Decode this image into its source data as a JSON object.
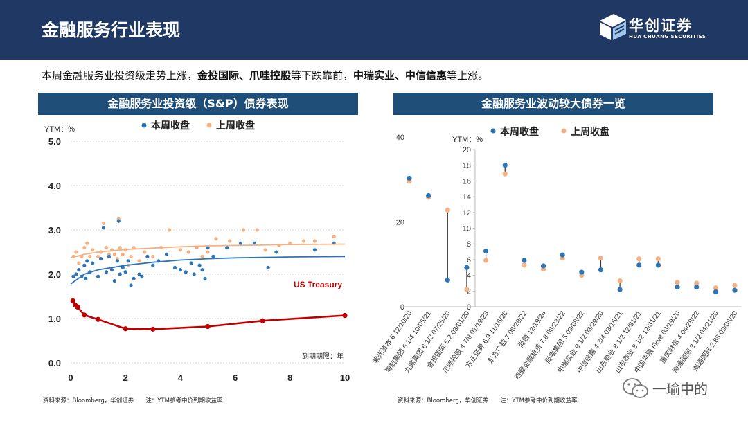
{
  "header": {
    "title": "金融服务行业表现",
    "logo_cn": "华创证券",
    "logo_en": "HUA CHUANG SECURITIES"
  },
  "summary": {
    "p1": "本周金融服务业投资级走势上涨，",
    "b1": "金投国际、爪哇控股",
    "p2": "等下跌靠前，",
    "b2": "中瑞实业、中信信惠",
    "p3": "等上涨。"
  },
  "panel_left": {
    "banner": "金融服务业投资级（S&P）债券表现",
    "ylabel": "YTM：%",
    "legend_this": "本周收盘",
    "legend_last": "上周收盘",
    "treasury_label": "US Treasury",
    "xlabel": "到期期限：年",
    "source": "资料来源：Bloomberg，华创证券　　注：YTM参考中价到期收益率"
  },
  "panel_right": {
    "banner": "金融服务业波动较大债券一览",
    "ylabel": "YTM：%",
    "legend_this": "本周收盘",
    "legend_last": "上周收盘",
    "source": "资料来源：Bloomberg，华创证券　　注：YTM参考中价到期收益率"
  },
  "watermark": "一瑜中的",
  "colors": {
    "this_week": "#2e75b6",
    "last_week": "#f4b183",
    "treasury": "#c00000",
    "navy": "#1f3864"
  },
  "chart_data": [
    {
      "type": "scatter",
      "title": "金融服务业投资级（S&P）债券表现",
      "xlabel": "到期期限：年",
      "ylabel": "YTM：%",
      "xlim": [
        0,
        10
      ],
      "ylim": [
        0,
        5
      ],
      "xticks": [
        "0",
        "2",
        "4",
        "6",
        "8",
        "10"
      ],
      "yticks": [
        "0.0",
        "1.0",
        "2.0",
        "3.0",
        "4.0",
        "5.0"
      ],
      "series": [
        {
          "name": "本周收盘",
          "points": [
            [
              0.1,
              1.95
            ],
            [
              0.2,
              2.0
            ],
            [
              0.3,
              2.1
            ],
            [
              0.4,
              1.95
            ],
            [
              0.5,
              2.2
            ],
            [
              0.55,
              1.9
            ],
            [
              0.6,
              2.3
            ],
            [
              0.7,
              2.05
            ],
            [
              0.8,
              2.25
            ],
            [
              1.0,
              1.95
            ],
            [
              1.1,
              2.35
            ],
            [
              1.2,
              3.05
            ],
            [
              1.3,
              2.05
            ],
            [
              1.4,
              2.4
            ],
            [
              1.5,
              2.1
            ],
            [
              1.6,
              1.85
            ],
            [
              1.7,
              2.3
            ],
            [
              1.75,
              3.2
            ],
            [
              1.8,
              2.0
            ],
            [
              1.9,
              2.15
            ],
            [
              2.0,
              2.05
            ],
            [
              2.1,
              2.3
            ],
            [
              2.2,
              1.75
            ],
            [
              2.3,
              1.9
            ],
            [
              2.5,
              2.0
            ],
            [
              2.6,
              1.95
            ],
            [
              2.8,
              2.4
            ],
            [
              3.0,
              2.2
            ],
            [
              3.2,
              2.3
            ],
            [
              3.5,
              2.45
            ],
            [
              3.8,
              2.15
            ],
            [
              4.0,
              2.1
            ],
            [
              4.2,
              2.05
            ],
            [
              4.4,
              2.25
            ],
            [
              4.5,
              2.0
            ],
            [
              4.7,
              2.2
            ],
            [
              4.8,
              2.1
            ],
            [
              4.9,
              1.9
            ],
            [
              5.0,
              2.6
            ],
            [
              5.2,
              2.4
            ],
            [
              5.7,
              2.6
            ],
            [
              6.2,
              2.7
            ],
            [
              6.7,
              2.7
            ],
            [
              7.2,
              2.15
            ],
            [
              7.5,
              2.5
            ],
            [
              8.9,
              2.55
            ],
            [
              9.6,
              2.7
            ]
          ]
        },
        {
          "name": "上周收盘",
          "points": [
            [
              0.1,
              2.4
            ],
            [
              0.2,
              2.5
            ],
            [
              0.3,
              2.25
            ],
            [
              0.4,
              2.4
            ],
            [
              0.5,
              2.6
            ],
            [
              0.6,
              2.7
            ],
            [
              0.7,
              2.4
            ],
            [
              0.8,
              2.55
            ],
            [
              1.0,
              2.4
            ],
            [
              1.1,
              2.5
            ],
            [
              1.2,
              3.15
            ],
            [
              1.3,
              2.6
            ],
            [
              1.4,
              2.45
            ],
            [
              1.5,
              2.55
            ],
            [
              1.6,
              2.45
            ],
            [
              1.7,
              2.35
            ],
            [
              1.75,
              3.25
            ],
            [
              1.8,
              2.6
            ],
            [
              1.9,
              2.45
            ],
            [
              2.0,
              2.55
            ],
            [
              2.1,
              2.2
            ],
            [
              2.2,
              2.4
            ],
            [
              2.3,
              2.6
            ],
            [
              2.5,
              2.3
            ],
            [
              2.7,
              2.5
            ],
            [
              3.0,
              2.4
            ],
            [
              3.3,
              2.6
            ],
            [
              3.6,
              3.0
            ],
            [
              4.0,
              2.55
            ],
            [
              4.3,
              2.5
            ],
            [
              4.6,
              2.6
            ],
            [
              4.8,
              2.4
            ],
            [
              5.0,
              2.5
            ],
            [
              5.3,
              2.8
            ],
            [
              5.8,
              2.75
            ],
            [
              6.3,
              3.0
            ],
            [
              6.8,
              3.0
            ],
            [
              7.1,
              2.55
            ],
            [
              7.6,
              2.65
            ],
            [
              8.0,
              2.7
            ],
            [
              8.5,
              2.75
            ],
            [
              8.9,
              2.75
            ],
            [
              9.6,
              2.85
            ]
          ]
        },
        {
          "name": "本周收盘趋势",
          "points": [
            [
              0,
              1.78
            ],
            [
              0.5,
              2.0
            ],
            [
              1,
              2.1
            ],
            [
              2,
              2.2
            ],
            [
              3,
              2.27
            ],
            [
              4,
              2.32
            ],
            [
              5,
              2.35
            ],
            [
              6,
              2.37
            ],
            [
              7,
              2.38
            ],
            [
              8,
              2.39
            ],
            [
              10,
              2.4
            ]
          ]
        },
        {
          "name": "上周收盘趋势",
          "points": [
            [
              0,
              2.37
            ],
            [
              0.5,
              2.45
            ],
            [
              1,
              2.5
            ],
            [
              2,
              2.56
            ],
            [
              3,
              2.59
            ],
            [
              4,
              2.62
            ],
            [
              5,
              2.64
            ],
            [
              6,
              2.65
            ],
            [
              7,
              2.66
            ],
            [
              8,
              2.67
            ],
            [
              10,
              2.68
            ]
          ]
        },
        {
          "name": "US Treasury",
          "points": [
            [
              0.08,
              1.4
            ],
            [
              0.17,
              1.3
            ],
            [
              0.25,
              1.26
            ],
            [
              0.5,
              1.08
            ],
            [
              1,
              0.98
            ],
            [
              2,
              0.77
            ],
            [
              3,
              0.76
            ],
            [
              5,
              0.82
            ],
            [
              7,
              0.95
            ],
            [
              10,
              1.07
            ]
          ]
        }
      ]
    },
    {
      "type": "scatter",
      "title": "金融服务业波动较大债券一览",
      "ylabel": "YTM：%",
      "categories": [
        "紫光资本 6 12/10/20",
        "海航集团 6 1/4 10/05/21",
        "九鼎集团 6 1/2 07/25/20",
        "金投国际 5.2 03/01/20",
        "爪哇控股 4 7/8 01/19/23",
        "方正证券 6.9 11/16/20",
        "东方广益 7 06/28/22",
        "尚融 12/19/24",
        "西藏金融租赁 7.8 08/23/22",
        "尚乘集团 5 09/08/22",
        "中瑞实业 9 1/2 03/29/20",
        "中信信惠 4 3/4 03/15/21",
        "山东商业 8 1/2 12/31/21",
        "山东商业 8 1/2 12/31/21",
        "中国华融 Float 03/19/20",
        "重庆财信 4 04/28/22",
        "海通国际 3 1/2 04/21/20",
        "海通国际 2.88 09/08/20"
      ],
      "left_axis": {
        "ticks": [
          "0",
          "20",
          "40"
        ],
        "ylim": [
          0,
          40
        ],
        "categories": 3
      },
      "right_axis": {
        "ticks": [
          "0",
          "2",
          "4",
          "6",
          "8",
          "10",
          "12",
          "14",
          "16",
          "18",
          "20"
        ],
        "ylim": [
          0,
          20
        ]
      },
      "series": [
        {
          "name": "本周收盘",
          "values": [
            30.3,
            26.2,
            6.3,
            5.0,
            7.1,
            18.0,
            5.9,
            5.2,
            6.6,
            4.4,
            4.7,
            2.2,
            5.3,
            5.3,
            2.5,
            2.5,
            1.9,
            2.1
          ]
        },
        {
          "name": "上周收盘",
          "values": [
            29.6,
            25.8,
            22.8,
            2.2,
            5.9,
            16.9,
            5.3,
            4.8,
            6.2,
            4.0,
            6.2,
            3.3,
            6.1,
            6.1,
            3.1,
            3.0,
            2.4,
            2.7
          ]
        }
      ]
    }
  ]
}
